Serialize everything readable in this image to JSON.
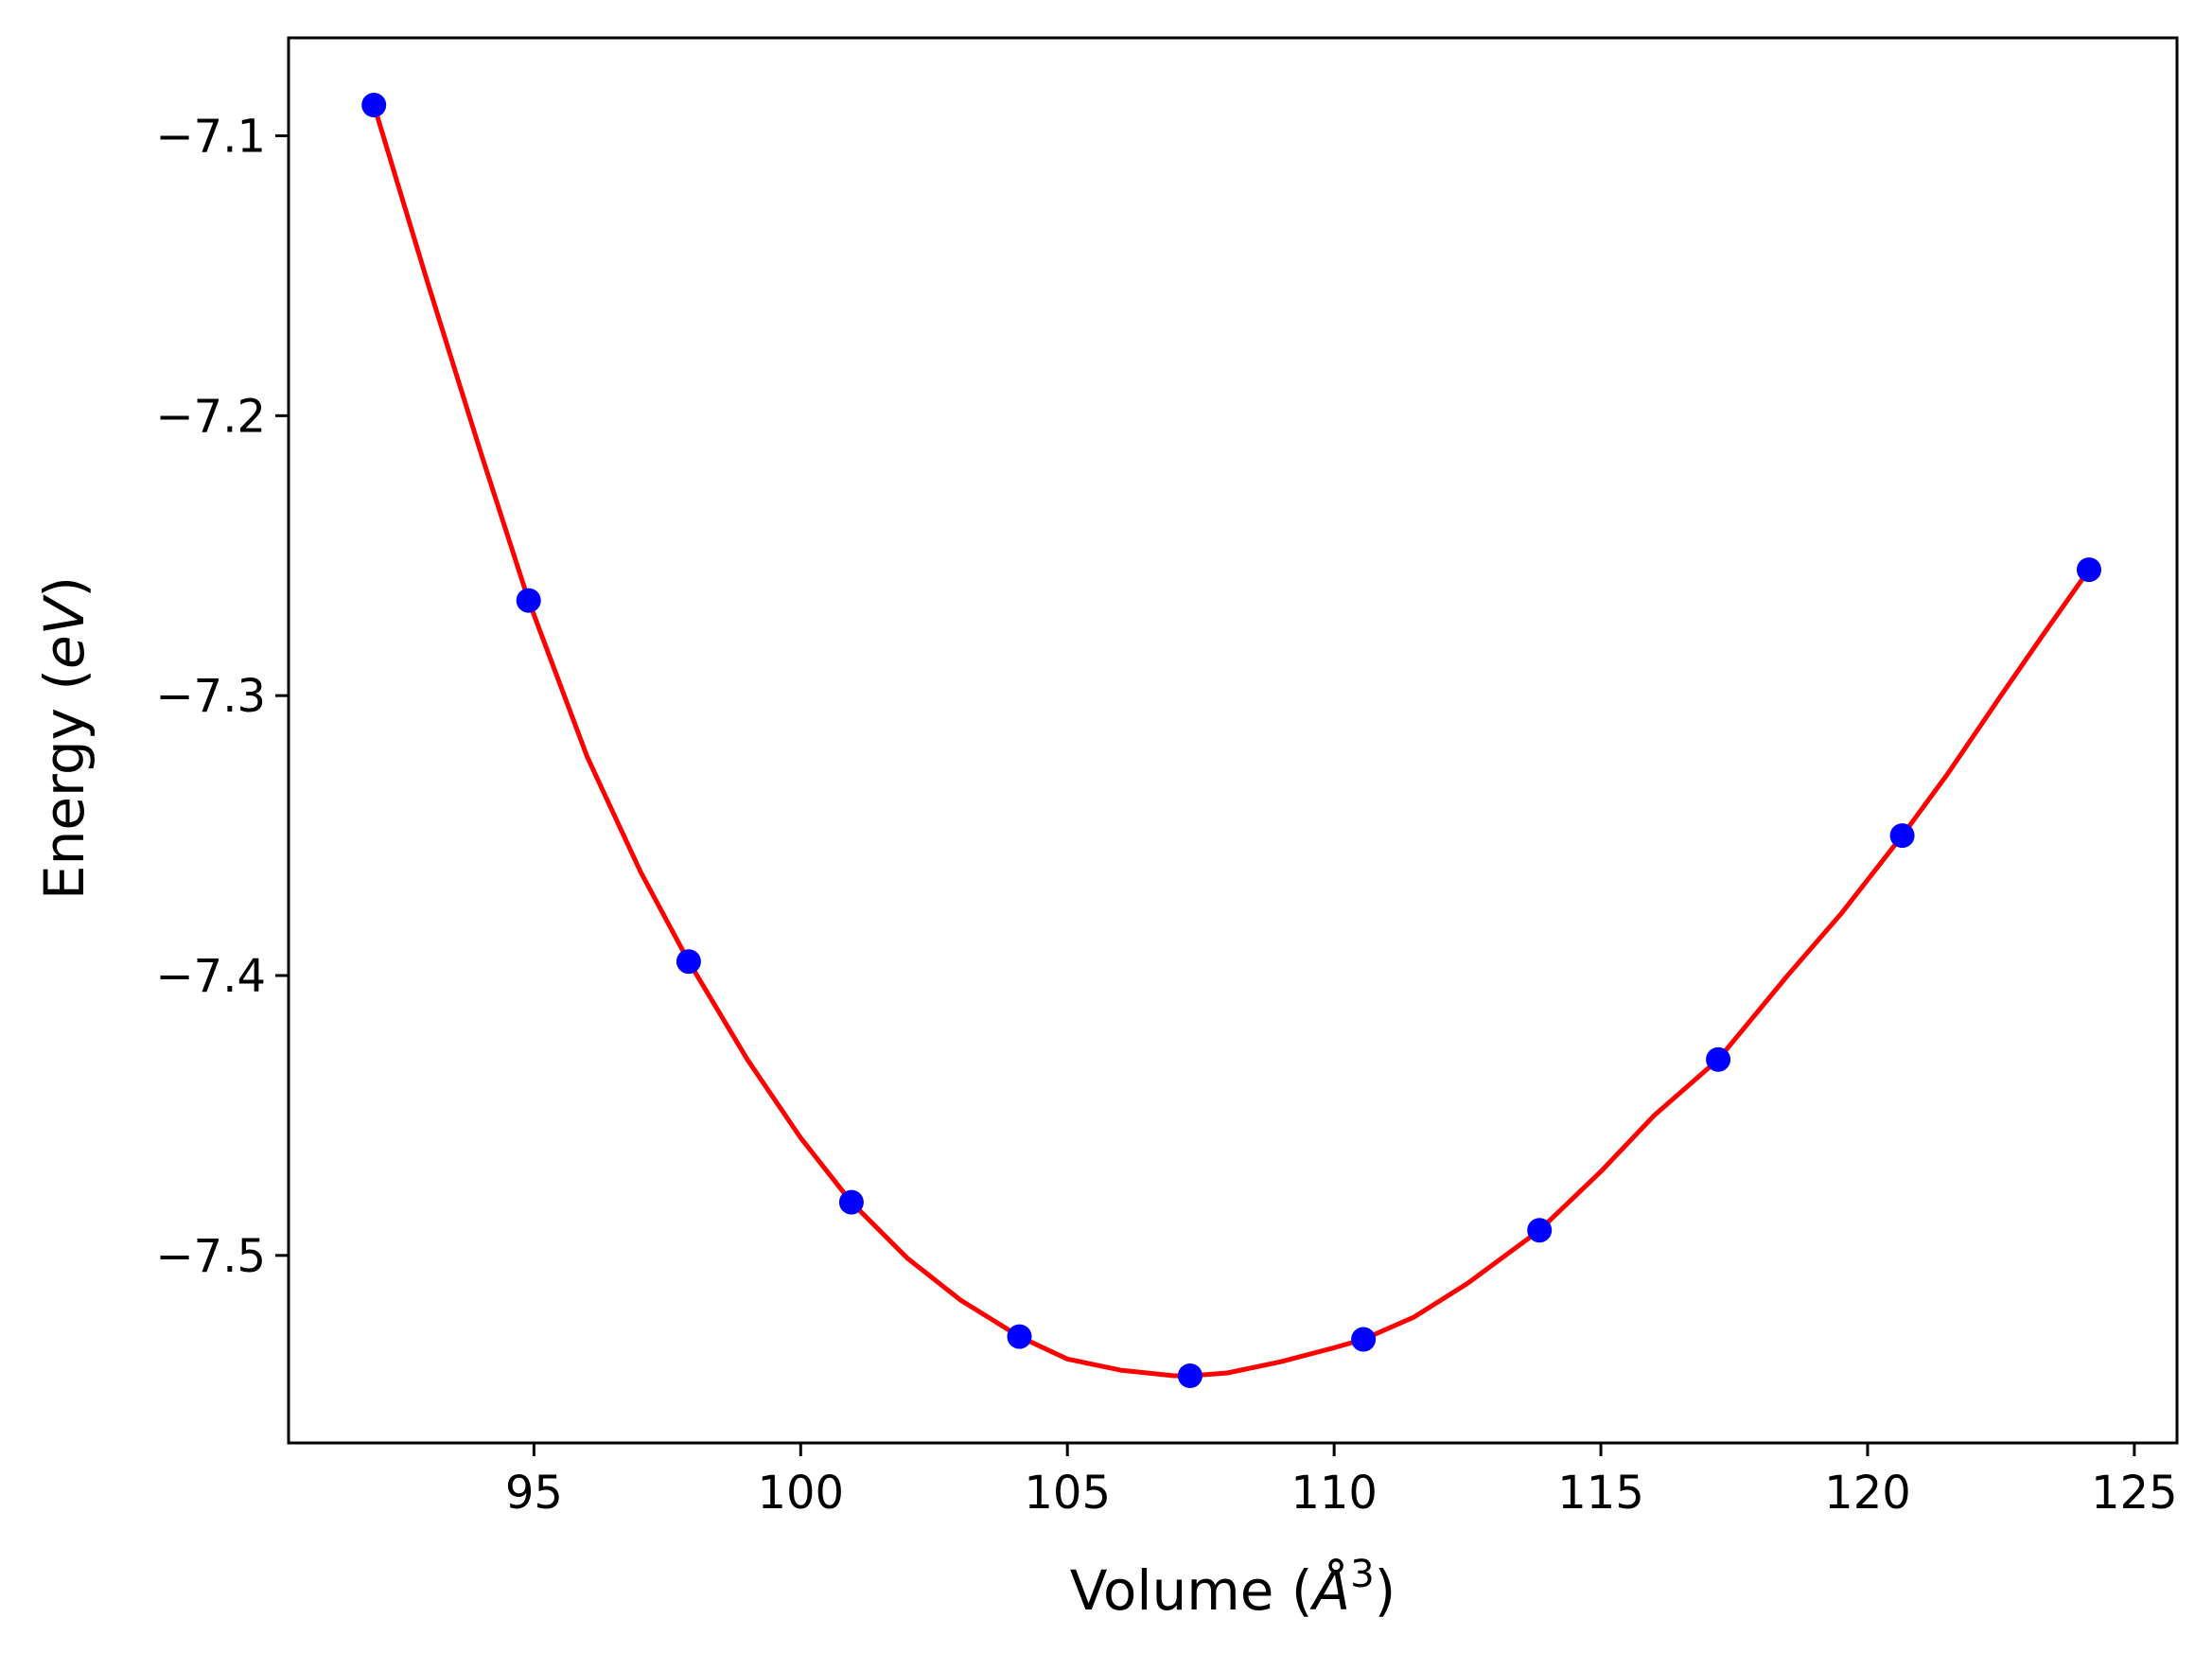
{
  "chart_data": {
    "type": "line",
    "title": "",
    "xlabel": "Volume (Å³)",
    "xlabel_parts": {
      "prefix": "Volume (",
      "unit": "Å",
      "sup": "3",
      "suffix": ")"
    },
    "ylabel": "Energy (eV)",
    "ylabel_parts": {
      "prefix": "Energy (",
      "unit": "eV",
      "suffix": ")"
    },
    "xlim": [
      90.4,
      125.8
    ],
    "ylim": [
      -7.567,
      -7.065
    ],
    "xticks": [
      95,
      100,
      105,
      110,
      115,
      120,
      125
    ],
    "xtick_labels": [
      "95",
      "100",
      "105",
      "110",
      "115",
      "120",
      "125"
    ],
    "yticks": [
      -7.1,
      -7.2,
      -7.3,
      -7.4,
      -7.5
    ],
    "ytick_labels": [
      "−7.1",
      "−7.2",
      "−7.3",
      "−7.4",
      "−7.5"
    ],
    "grid": false,
    "legend": "none",
    "series": [
      {
        "kind": "points",
        "color": "#0000ff",
        "x": [
          92.0,
          94.9,
          97.9,
          100.95,
          104.1,
          107.3,
          110.55,
          113.85,
          117.2,
          120.65,
          124.15
        ],
        "y": [
          -7.089,
          -7.266,
          -7.395,
          -7.481,
          -7.529,
          -7.543,
          -7.53,
          -7.491,
          -7.43,
          -7.35,
          -7.255
        ]
      },
      {
        "kind": "fit-curve",
        "color": "#ff0000",
        "x": [
          92.0,
          93.0,
          94.0,
          94.9,
          96.0,
          97.0,
          97.9,
          99.0,
          100.0,
          100.95,
          102.0,
          103.0,
          104.1,
          105.0,
          106.0,
          107.0,
          107.3,
          108.0,
          109.0,
          110.0,
          110.55,
          111.5,
          112.5,
          113.85,
          115.0,
          116.0,
          117.2,
          118.5,
          119.5,
          120.65,
          121.5,
          122.5,
          123.3,
          124.15
        ],
        "y": [
          -7.089,
          -7.152,
          -7.213,
          -7.266,
          -7.322,
          -7.363,
          -7.395,
          -7.43,
          -7.458,
          -7.481,
          -7.501,
          -7.516,
          -7.529,
          -7.537,
          -7.541,
          -7.543,
          -7.543,
          -7.542,
          -7.538,
          -7.533,
          -7.53,
          -7.522,
          -7.51,
          -7.491,
          -7.47,
          -7.45,
          -7.43,
          -7.4,
          -7.378,
          -7.35,
          -7.328,
          -7.3,
          -7.278,
          -7.255
        ]
      }
    ]
  }
}
